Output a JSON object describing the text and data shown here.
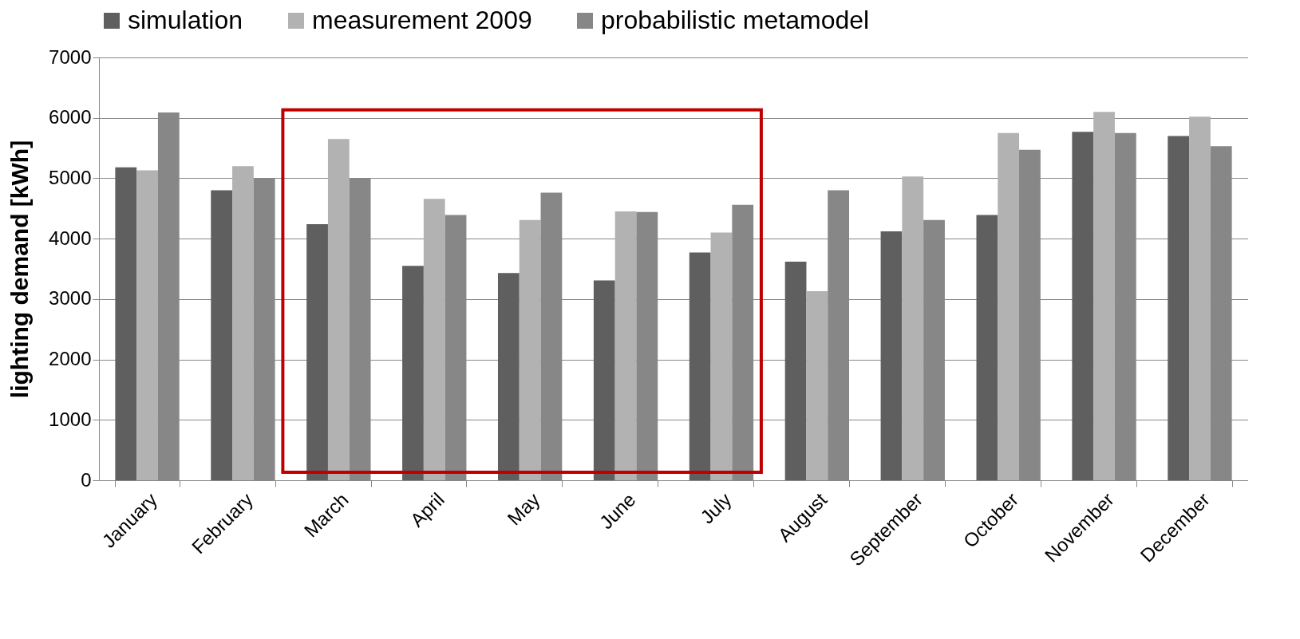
{
  "chart_data": {
    "type": "bar",
    "ylabel": "lighting demand [kWh]",
    "categories": [
      "January",
      "February",
      "March",
      "April",
      "May",
      "June",
      "July",
      "August",
      "September",
      "October",
      "November",
      "December"
    ],
    "series": [
      {
        "name": "simulation",
        "color": "#5f5f5f",
        "values": [
          5180,
          4800,
          4240,
          3550,
          3430,
          3310,
          3770,
          3620,
          4120,
          4390,
          5770,
          5700
        ]
      },
      {
        "name": "measurement 2009",
        "color": "#b2b2b2",
        "values": [
          5130,
          5200,
          5650,
          4660,
          4310,
          4450,
          4100,
          3130,
          5030,
          5750,
          6100,
          6020
        ]
      },
      {
        "name": "probabilistic metamodel",
        "color": "#878787",
        "values": [
          6090,
          5000,
          5000,
          4390,
          4760,
          4440,
          4560,
          4800,
          4310,
          5470,
          5750,
          5530
        ]
      }
    ],
    "ylim": [
      0,
      7000
    ],
    "yticks": [
      0,
      1000,
      2000,
      3000,
      4000,
      5000,
      6000,
      7000
    ],
    "grid": "y",
    "legend": "top left"
  }
}
